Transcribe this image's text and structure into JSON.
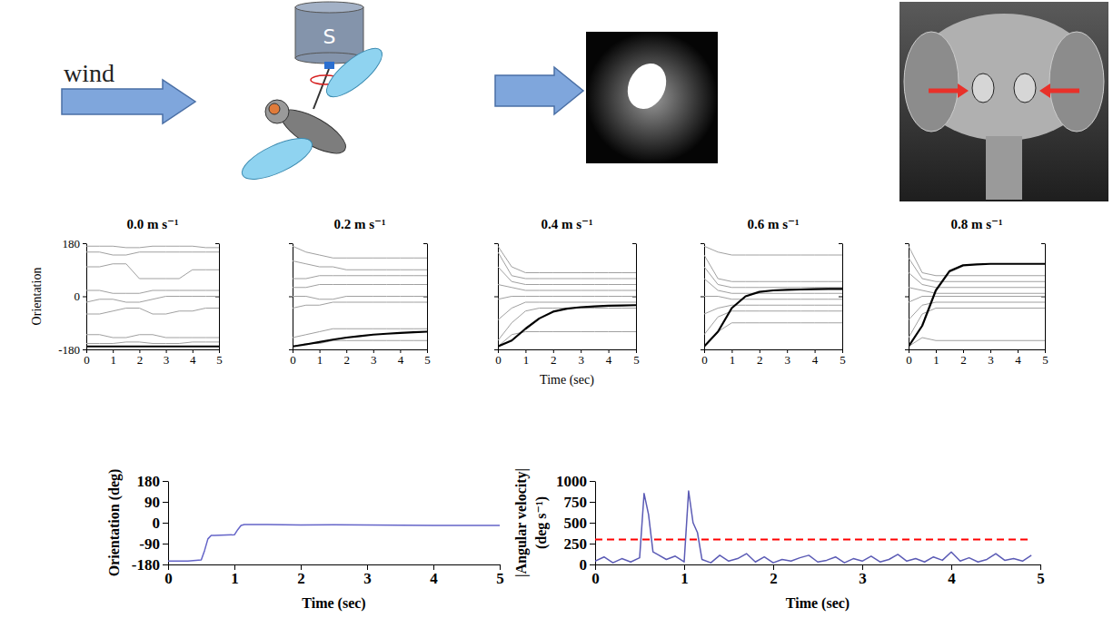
{
  "diagram": {
    "wind_label": "wind",
    "motor_label": "S"
  },
  "chart_data": [
    {
      "type": "line",
      "title": "0.0 m s⁻¹",
      "y_label": "Orientation",
      "x": [
        0,
        0.5,
        1,
        1.5,
        2,
        2.5,
        3,
        3.5,
        4,
        4.5,
        5
      ],
      "xlim": [
        0,
        5
      ],
      "xticks": [
        0,
        1,
        2,
        3,
        4,
        5
      ],
      "ylim": [
        -180,
        180
      ],
      "yticks": [
        -180,
        0,
        180
      ],
      "series": [
        {
          "color": "#a0a0a0",
          "values": [
            170,
            170,
            170,
            165,
            165,
            170,
            170,
            170,
            170,
            165,
            165
          ]
        },
        {
          "color": "#a0a0a0",
          "values": [
            150,
            150,
            140,
            140,
            150,
            150,
            150,
            150,
            150,
            150,
            150
          ]
        },
        {
          "color": "#a0a0a0",
          "values": [
            100,
            100,
            110,
            110,
            60,
            60,
            60,
            60,
            90,
            90,
            90
          ]
        },
        {
          "color": "#a0a0a0",
          "values": [
            20,
            20,
            10,
            10,
            10,
            20,
            20,
            20,
            20,
            20,
            20
          ]
        },
        {
          "color": "#a0a0a0",
          "values": [
            -20,
            -10,
            -10,
            -20,
            -20,
            -10,
            0,
            0,
            0,
            0,
            0
          ]
        },
        {
          "color": "#a0a0a0",
          "values": [
            -60,
            -60,
            -50,
            -40,
            -40,
            -60,
            -60,
            -50,
            -50,
            -40,
            -40
          ]
        },
        {
          "color": "#a0a0a0",
          "values": [
            -130,
            -130,
            -140,
            -140,
            -130,
            -130,
            -140,
            -140,
            -140,
            -140,
            -140
          ]
        },
        {
          "color": "#a0a0a0",
          "values": [
            -160,
            -160,
            -160,
            -155,
            -155,
            -160,
            -160,
            -160,
            -155,
            -155,
            -155
          ]
        },
        {
          "color": "#000000",
          "values": [
            -170,
            -170,
            -170,
            -170,
            -170,
            -170,
            -170,
            -170,
            -170,
            -170,
            -170
          ]
        }
      ]
    },
    {
      "type": "line",
      "title": "0.2 m s⁻¹",
      "tick_labels": "x",
      "x": [
        0,
        0.5,
        1,
        1.5,
        2,
        2.5,
        3,
        3.5,
        4,
        4.5,
        5
      ],
      "xlim": [
        0,
        5
      ],
      "xticks": [
        0,
        1,
        2,
        3,
        4,
        5
      ],
      "ylim": [
        -180,
        180
      ],
      "yticks": [
        -180,
        0,
        180
      ],
      "series": [
        {
          "color": "#a0a0a0",
          "values": [
            170,
            150,
            140,
            130,
            130,
            130,
            130,
            130,
            130,
            130,
            130
          ]
        },
        {
          "color": "#a0a0a0",
          "values": [
            120,
            110,
            100,
            100,
            90,
            90,
            90,
            90,
            90,
            90,
            90
          ]
        },
        {
          "color": "#a0a0a0",
          "values": [
            60,
            60,
            70,
            70,
            70,
            70,
            70,
            70,
            70,
            70,
            70
          ]
        },
        {
          "color": "#a0a0a0",
          "values": [
            30,
            30,
            40,
            40,
            40,
            40,
            40,
            40,
            40,
            40,
            40
          ]
        },
        {
          "color": "#a0a0a0",
          "values": [
            0,
            0,
            -10,
            -10,
            0,
            0,
            0,
            0,
            0,
            0,
            0
          ]
        },
        {
          "color": "#a0a0a0",
          "values": [
            -40,
            -30,
            -30,
            -20,
            -20,
            -20,
            -20,
            -20,
            -20,
            -20,
            -20
          ]
        },
        {
          "color": "#a0a0a0",
          "values": [
            -140,
            -130,
            -120,
            -110,
            -110,
            -110,
            -110,
            -110,
            -110,
            -110,
            -110
          ]
        },
        {
          "color": "#a0a0a0",
          "values": [
            -170,
            -160,
            -160,
            -150,
            -150,
            -150,
            -150,
            -150,
            -150,
            -150,
            -150
          ]
        },
        {
          "color": "#000000",
          "values": [
            -170,
            -163,
            -155,
            -147,
            -140,
            -135,
            -130,
            -127,
            -124,
            -122,
            -120
          ]
        }
      ]
    },
    {
      "type": "line",
      "title": "0.4 m s⁻¹",
      "tick_labels": "x",
      "x_label": "Time (sec)",
      "x": [
        0,
        0.5,
        1,
        1.5,
        2,
        2.5,
        3,
        3.5,
        4,
        4.5,
        5
      ],
      "xlim": [
        0,
        5
      ],
      "xticks": [
        0,
        1,
        2,
        3,
        4,
        5
      ],
      "ylim": [
        -180,
        180
      ],
      "yticks": [
        -180,
        0,
        180
      ],
      "series": [
        {
          "color": "#a0a0a0",
          "values": [
            170,
            100,
            80,
            80,
            80,
            80,
            80,
            80,
            80,
            80,
            80
          ]
        },
        {
          "color": "#a0a0a0",
          "values": [
            150,
            70,
            60,
            60,
            60,
            60,
            60,
            60,
            60,
            60,
            60
          ]
        },
        {
          "color": "#a0a0a0",
          "values": [
            100,
            50,
            40,
            40,
            40,
            40,
            40,
            40,
            40,
            40,
            40
          ]
        },
        {
          "color": "#a0a0a0",
          "values": [
            40,
            30,
            20,
            20,
            20,
            20,
            20,
            20,
            20,
            20,
            20
          ]
        },
        {
          "color": "#a0a0a0",
          "values": [
            -10,
            0,
            0,
            0,
            0,
            0,
            0,
            0,
            0,
            0,
            0
          ]
        },
        {
          "color": "#a0a0a0",
          "values": [
            -80,
            -40,
            -20,
            -20,
            -20,
            -20,
            -20,
            -20,
            -20,
            -20,
            -20
          ]
        },
        {
          "color": "#a0a0a0",
          "values": [
            -150,
            -90,
            -50,
            -40,
            -40,
            -40,
            -40,
            -40,
            -40,
            -40,
            -40
          ]
        },
        {
          "color": "#a0a0a0",
          "values": [
            -170,
            -130,
            -120,
            -120,
            -120,
            -120,
            -120,
            -120,
            -120,
            -120,
            -120
          ]
        },
        {
          "color": "#000000",
          "values": [
            -170,
            -150,
            -110,
            -75,
            -52,
            -42,
            -37,
            -34,
            -32,
            -31,
            -30
          ]
        }
      ]
    },
    {
      "type": "line",
      "title": "0.6 m s⁻¹",
      "tick_labels": "x",
      "x": [
        0,
        0.5,
        1,
        1.5,
        2,
        2.5,
        3,
        3.5,
        4,
        4.5,
        5
      ],
      "xlim": [
        0,
        5
      ],
      "xticks": [
        0,
        1,
        2,
        3,
        4,
        5
      ],
      "ylim": [
        -180,
        180
      ],
      "yticks": [
        -180,
        0,
        180
      ],
      "series": [
        {
          "color": "#a0a0a0",
          "values": [
            170,
            150,
            140,
            140,
            140,
            140,
            140,
            140,
            140,
            140,
            140
          ]
        },
        {
          "color": "#a0a0a0",
          "values": [
            140,
            60,
            50,
            50,
            50,
            50,
            50,
            50,
            50,
            50,
            50
          ]
        },
        {
          "color": "#a0a0a0",
          "values": [
            100,
            40,
            30,
            30,
            30,
            30,
            30,
            30,
            30,
            30,
            30
          ]
        },
        {
          "color": "#a0a0a0",
          "values": [
            60,
            20,
            10,
            10,
            10,
            10,
            10,
            10,
            10,
            10,
            10
          ]
        },
        {
          "color": "#a0a0a0",
          "values": [
            0,
            0,
            -10,
            -10,
            -10,
            -10,
            -10,
            -10,
            -10,
            -10,
            -10
          ]
        },
        {
          "color": "#a0a0a0",
          "values": [
            -60,
            -40,
            -30,
            -30,
            -30,
            -30,
            -30,
            -30,
            -30,
            -30,
            -30
          ]
        },
        {
          "color": "#a0a0a0",
          "values": [
            -130,
            -70,
            -50,
            -50,
            -50,
            -50,
            -50,
            -50,
            -50,
            -50,
            -50
          ]
        },
        {
          "color": "#a0a0a0",
          "values": [
            -170,
            -120,
            -90,
            -90,
            -90,
            -90,
            -90,
            -90,
            -90,
            -90,
            -90
          ]
        },
        {
          "color": "#000000",
          "values": [
            -170,
            -120,
            -40,
            0,
            15,
            20,
            22,
            23,
            24,
            25,
            25
          ]
        }
      ]
    },
    {
      "type": "line",
      "title": "0.8 m s⁻¹",
      "tick_labels": "x",
      "x": [
        0,
        0.5,
        1,
        1.5,
        2,
        2.5,
        3,
        3.5,
        4,
        4.5,
        5
      ],
      "xlim": [
        0,
        5
      ],
      "xticks": [
        0,
        1,
        2,
        3,
        4,
        5
      ],
      "ylim": [
        -180,
        180
      ],
      "yticks": [
        -180,
        0,
        180
      ],
      "series": [
        {
          "color": "#a0a0a0",
          "values": [
            170,
            80,
            70,
            70,
            70,
            70,
            70,
            70,
            70,
            70,
            70
          ]
        },
        {
          "color": "#a0a0a0",
          "values": [
            130,
            60,
            50,
            50,
            50,
            50,
            50,
            50,
            50,
            50,
            50
          ]
        },
        {
          "color": "#a0a0a0",
          "values": [
            80,
            40,
            30,
            30,
            30,
            30,
            30,
            30,
            30,
            30,
            30
          ]
        },
        {
          "color": "#a0a0a0",
          "values": [
            30,
            20,
            10,
            10,
            10,
            10,
            10,
            10,
            10,
            10,
            10
          ]
        },
        {
          "color": "#a0a0a0",
          "values": [
            -20,
            0,
            0,
            0,
            0,
            0,
            0,
            0,
            0,
            0,
            0
          ]
        },
        {
          "color": "#a0a0a0",
          "values": [
            -80,
            -30,
            -20,
            -20,
            -20,
            -20,
            -20,
            -20,
            -20,
            -20,
            -20
          ]
        },
        {
          "color": "#a0a0a0",
          "values": [
            -140,
            -60,
            -40,
            -40,
            -40,
            -40,
            -40,
            -40,
            -40,
            -40,
            -40
          ]
        },
        {
          "color": "#a0a0a0",
          "values": [
            -170,
            -140,
            -150,
            -150,
            -150,
            -150,
            -150,
            -150,
            -150,
            -150,
            -150
          ]
        },
        {
          "color": "#000000",
          "values": [
            -170,
            -100,
            20,
            85,
            105,
            108,
            110,
            110,
            110,
            110,
            110
          ]
        }
      ]
    },
    {
      "type": "line",
      "y_label": "Orientation (deg)",
      "x_label": "Time (sec)",
      "x": [
        0,
        0.3,
        0.5,
        0.55,
        0.6,
        0.65,
        0.7,
        1.0,
        1.05,
        1.1,
        1.15,
        1.5,
        2,
        2.5,
        3,
        3.5,
        4,
        4.5,
        5
      ],
      "xlim": [
        0,
        5
      ],
      "xticks": [
        0,
        1,
        2,
        3,
        4,
        5
      ],
      "ylim": [
        -180,
        180
      ],
      "yticks": [
        -180,
        -90,
        0,
        90,
        180
      ],
      "series": [
        {
          "color": "#6464c8",
          "values": [
            -165,
            -165,
            -160,
            -120,
            -70,
            -55,
            -55,
            -52,
            -30,
            -12,
            -8,
            -8,
            -10,
            -9,
            -10,
            -11,
            -12,
            -12,
            -12
          ]
        }
      ]
    },
    {
      "type": "line",
      "y_label": [
        "|Angular velocity|",
        "(deg s⁻¹)"
      ],
      "x_label": "Time (sec)",
      "xlim": [
        0,
        5
      ],
      "xticks": [
        0,
        1,
        2,
        3,
        4,
        5
      ],
      "ylim": [
        0,
        1000
      ],
      "yticks": [
        0,
        250,
        500,
        750,
        1000
      ],
      "series": [
        {
          "color": "#5b5bb5",
          "x": [
            0,
            0.1,
            0.2,
            0.3,
            0.4,
            0.5,
            0.55,
            0.6,
            0.65,
            0.7,
            0.8,
            0.9,
            1.0,
            1.05,
            1.1,
            1.15,
            1.2,
            1.3,
            1.4,
            1.5,
            1.6,
            1.7,
            1.8,
            1.9,
            2.0,
            2.1,
            2.2,
            2.3,
            2.4,
            2.5,
            2.6,
            2.7,
            2.8,
            2.9,
            3.0,
            3.1,
            3.2,
            3.3,
            3.4,
            3.5,
            3.6,
            3.7,
            3.8,
            3.9,
            4.0,
            4.1,
            4.2,
            4.3,
            4.4,
            4.5,
            4.6,
            4.7,
            4.8,
            4.9
          ],
          "values": [
            40,
            90,
            20,
            70,
            30,
            80,
            850,
            600,
            150,
            120,
            60,
            100,
            30,
            880,
            500,
            380,
            60,
            20,
            110,
            40,
            70,
            130,
            30,
            90,
            20,
            60,
            40,
            80,
            110,
            30,
            50,
            90,
            20,
            70,
            40,
            100,
            30,
            60,
            120,
            40,
            70,
            30,
            90,
            50,
            150,
            40,
            80,
            30,
            60,
            130,
            50,
            70,
            40,
            110
          ]
        },
        {
          "color": "#ff0000",
          "line_style": "dashed",
          "x": [
            0,
            4.9
          ],
          "values": [
            300,
            300
          ]
        }
      ]
    }
  ]
}
